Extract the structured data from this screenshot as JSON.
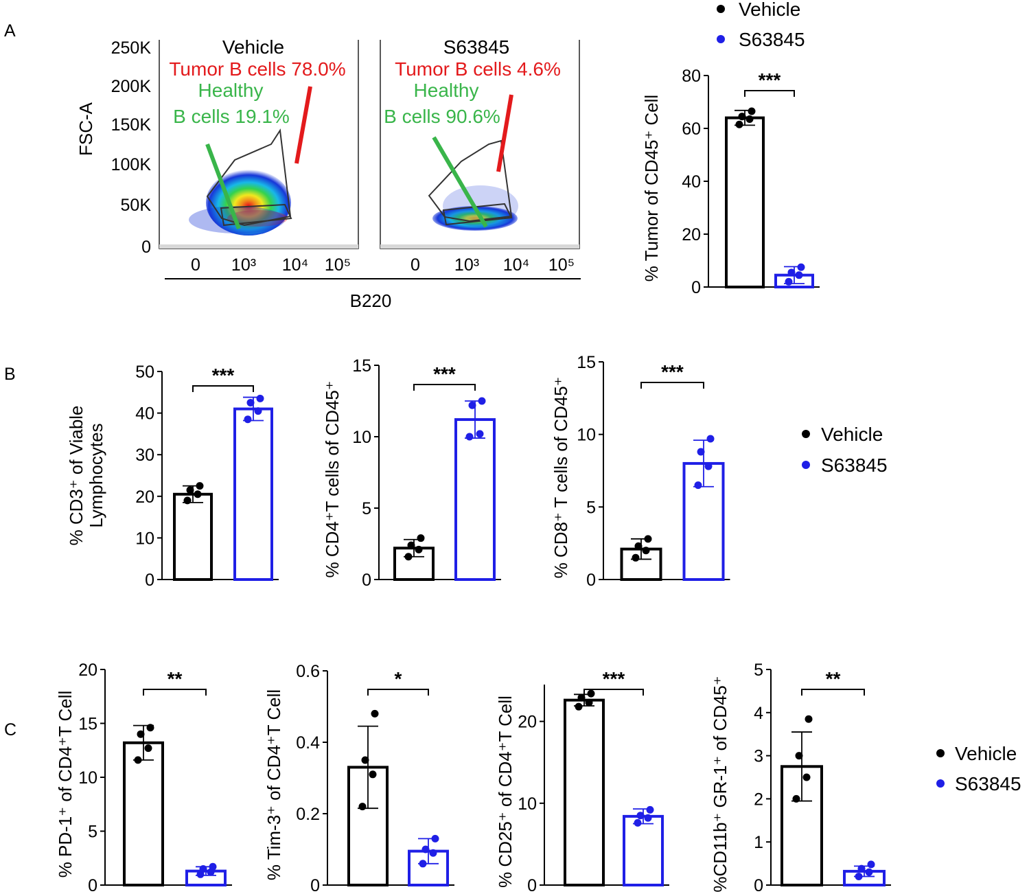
{
  "panel_labels": [
    "A",
    "B",
    "C"
  ],
  "colors": {
    "vehicle": "#000000",
    "s63845": "#1f1fe6",
    "tumor": "#e31a1c",
    "healthy": "#39b54a"
  },
  "flow": {
    "y_axis_label": "FSC-A",
    "x_axis_label": "B220",
    "y_ticks": [
      "250K",
      "200K",
      "150K",
      "100K",
      "50K",
      "0"
    ],
    "x_ticks": [
      "0",
      "10³",
      "10⁴",
      "10⁵"
    ],
    "plots": [
      {
        "title": "Vehicle",
        "tumor_label": "Tumor B cells 78.0%",
        "healthy_label_1": "Healthy",
        "healthy_label_2": "B cells 19.1%"
      },
      {
        "title": "S63845",
        "tumor_label": "Tumor B cells 4.6%",
        "healthy_label_1": "Healthy",
        "healthy_label_2": "B cells 90.6%"
      }
    ]
  },
  "legend": {
    "vehicle": "Vehicle",
    "s63845": "S63845"
  },
  "chart_data": [
    {
      "id": "A2",
      "type": "bar",
      "ylabel": "% Tumor of CD45⁺ Cell",
      "categories": [
        "Vehicle",
        "S63845"
      ],
      "ylim": [
        0,
        80
      ],
      "yticks": [
        0,
        20,
        40,
        60,
        80
      ],
      "values": [
        64,
        4.5
      ],
      "sd": [
        2.8,
        3.2
      ],
      "points": [
        [
          61.5,
          63.5,
          64.5,
          66.5
        ],
        [
          2,
          4.5,
          5.5,
          7.5
        ]
      ],
      "significance": "***"
    },
    {
      "id": "B1",
      "type": "bar",
      "ylabel_1": "% CD3⁺ of Viable",
      "ylabel_2": "Lymphocytes",
      "categories": [
        "Vehicle",
        "S63845"
      ],
      "ylim": [
        0,
        50
      ],
      "yticks": [
        0,
        10,
        20,
        30,
        40,
        50
      ],
      "values": [
        20.5,
        41
      ],
      "sd": [
        2,
        2.8
      ],
      "points": [
        [
          19,
          20.5,
          21.5,
          22.5
        ],
        [
          38.5,
          40.5,
          42.5,
          43.5
        ]
      ],
      "significance": "***"
    },
    {
      "id": "B2",
      "type": "bar",
      "ylabel": "% CD4⁺T cells  of CD45⁺",
      "categories": [
        "Vehicle",
        "S63845"
      ],
      "ylim": [
        0,
        15
      ],
      "yticks": [
        0,
        5,
        10,
        15
      ],
      "values": [
        2.2,
        11.2
      ],
      "sd": [
        0.6,
        1.3
      ],
      "points": [
        [
          1.6,
          2.1,
          2.4,
          2.9
        ],
        [
          10,
          10.2,
          12.2,
          12.5
        ]
      ],
      "significance": "***"
    },
    {
      "id": "B3",
      "type": "bar",
      "ylabel": "% CD8⁺ T cells  of CD45⁺",
      "categories": [
        "Vehicle",
        "S63845"
      ],
      "ylim": [
        0,
        15
      ],
      "yticks": [
        0,
        5,
        10,
        15
      ],
      "values": [
        2.1,
        8
      ],
      "sd": [
        0.7,
        1.6
      ],
      "points": [
        [
          1.5,
          2,
          2.3,
          2.8
        ],
        [
          6.5,
          7.8,
          8.8,
          9.7
        ]
      ],
      "significance": "***"
    },
    {
      "id": "C1",
      "type": "bar",
      "ylabel": "% PD-1⁺ of CD4⁺T Cell",
      "categories": [
        "Vehicle",
        "S63845"
      ],
      "ylim": [
        0,
        20
      ],
      "yticks": [
        0,
        5,
        10,
        15,
        20
      ],
      "values": [
        13.2,
        1.3
      ],
      "sd": [
        1.6,
        0.4
      ],
      "points": [
        [
          11.6,
          12.7,
          14,
          14.6
        ],
        [
          1,
          1.2,
          1.5,
          1.7
        ]
      ],
      "significance": "**"
    },
    {
      "id": "C2",
      "type": "bar",
      "ylabel": "% Tim-3⁺ of CD4⁺T Cell",
      "categories": [
        "Vehicle",
        "S63845"
      ],
      "ylim": [
        0,
        0.6
      ],
      "yticks": [
        "0",
        "0.2",
        "0.4",
        "0.6"
      ],
      "values": [
        0.33,
        0.095
      ],
      "sd": [
        0.115,
        0.035
      ],
      "points": [
        [
          0.22,
          0.31,
          0.35,
          0.48
        ],
        [
          0.06,
          0.09,
          0.1,
          0.13
        ]
      ],
      "significance": "*"
    },
    {
      "id": "C3",
      "type": "bar",
      "ylabel": "% CD25⁺ of CD4⁺T Cell",
      "categories": [
        "Vehicle",
        "S63845"
      ],
      "ylim": [
        0,
        24.5
      ],
      "yticks": [
        0,
        10,
        20
      ],
      "values": [
        22.6,
        8.4
      ],
      "sd": [
        0.7,
        0.9
      ],
      "points": [
        [
          21.8,
          22.3,
          22.9,
          23.4
        ],
        [
          7.6,
          8.2,
          8.5,
          9.2
        ]
      ],
      "significance": "***"
    },
    {
      "id": "C4",
      "type": "bar",
      "ylabel": "%CD11b⁺ GR-1⁺ of CD45⁺",
      "categories": [
        "Vehicle",
        "S63845"
      ],
      "ylim": [
        0,
        5
      ],
      "yticks": [
        0,
        1,
        2,
        3,
        4,
        5
      ],
      "values": [
        2.75,
        0.32
      ],
      "sd": [
        0.8,
        0.12
      ],
      "points": [
        [
          2,
          2.5,
          3,
          3.85
        ],
        [
          0.2,
          0.3,
          0.38,
          0.48
        ]
      ],
      "significance": "**"
    }
  ]
}
